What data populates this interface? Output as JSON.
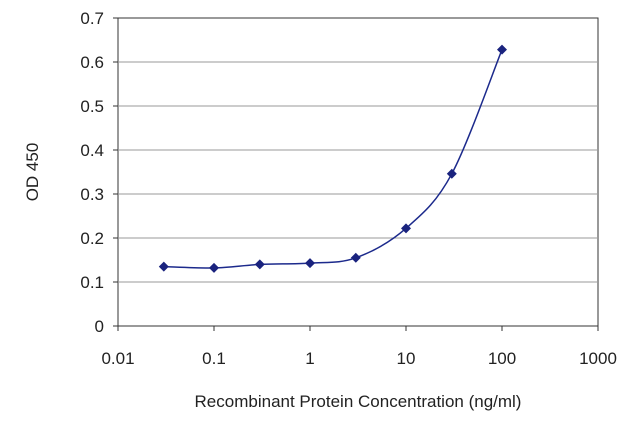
{
  "chart_data": {
    "type": "line",
    "title": "",
    "xlabel": "Recombinant Protein Concentration (ng/ml)",
    "ylabel": "OD 450",
    "x_scale": "log",
    "xlim": [
      0.01,
      1000
    ],
    "ylim": [
      0,
      0.7
    ],
    "x_ticks": [
      "0.01",
      "0.1",
      "1",
      "10",
      "100",
      "1000"
    ],
    "y_ticks": [
      "0",
      "0.1",
      "0.2",
      "0.3",
      "0.4",
      "0.5",
      "0.6",
      "0.7"
    ],
    "grid": "horizontal",
    "legend": "none",
    "series": [
      {
        "x": [
          0.03,
          0.1,
          0.3,
          1,
          3,
          10,
          30,
          100
        ],
        "y": [
          0.135,
          0.132,
          0.14,
          0.143,
          0.155,
          0.222,
          0.346,
          0.628
        ]
      }
    ],
    "colors": {
      "series": "#1c2a8c",
      "marker": "#1a237e",
      "grid": "#9a9a9a",
      "axis": "#333333"
    }
  }
}
